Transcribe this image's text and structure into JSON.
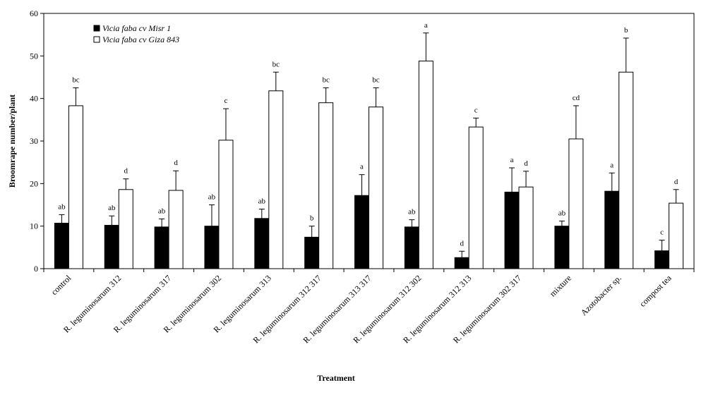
{
  "chart_data": {
    "type": "bar",
    "title": "",
    "xlabel": "Treatment",
    "ylabel": "Broomrape number/plant",
    "ylim": [
      0,
      60
    ],
    "yticks": [
      0,
      10,
      20,
      30,
      40,
      50,
      60
    ],
    "grid": false,
    "legend_position": "top-left",
    "categories": [
      "control",
      "R. leguminosarum 312",
      "R. leguminosarum 317",
      "R. leguminosarum 302",
      "R. leguminosarum 313",
      "R. leguminosarum 312 317",
      "R. leguminosarum 313 317",
      "R. leguminosarum 312 302",
      "R. leguminosarum 312 313",
      "R. leguminosarum 302 317",
      "mixture",
      "Azotobacter sp.",
      "compost tea"
    ],
    "series": [
      {
        "name": "Vicia faba cv Misr 1",
        "color": "#000000",
        "values": [
          10.7,
          10.2,
          9.8,
          10.0,
          11.8,
          7.4,
          17.2,
          9.8,
          2.6,
          18.0,
          10.0,
          18.2,
          4.2
        ],
        "errors": [
          2.0,
          2.2,
          1.9,
          5.0,
          2.2,
          2.6,
          4.9,
          1.7,
          1.5,
          5.7,
          1.2,
          4.3,
          2.5
        ],
        "labels": [
          "ab",
          "ab",
          "ab",
          "ab",
          "ab",
          "b",
          "a",
          "ab",
          "d",
          "a",
          "ab",
          "a",
          "c"
        ]
      },
      {
        "name": "Vicia faba cv Giza 843",
        "color": "#ffffff",
        "values": [
          38.3,
          18.6,
          18.4,
          30.2,
          41.8,
          39.0,
          38.0,
          48.8,
          33.3,
          19.2,
          30.5,
          46.2,
          15.4
        ],
        "errors": [
          4.2,
          2.5,
          4.6,
          7.4,
          4.4,
          3.5,
          4.5,
          6.6,
          2.1,
          3.7,
          7.8,
          8.0,
          3.2
        ],
        "labels": [
          "bc",
          "d",
          "d",
          "c",
          "bc",
          "bc",
          "bc",
          "a",
          "c",
          "d",
          "cd",
          "b",
          "d"
        ]
      }
    ]
  }
}
